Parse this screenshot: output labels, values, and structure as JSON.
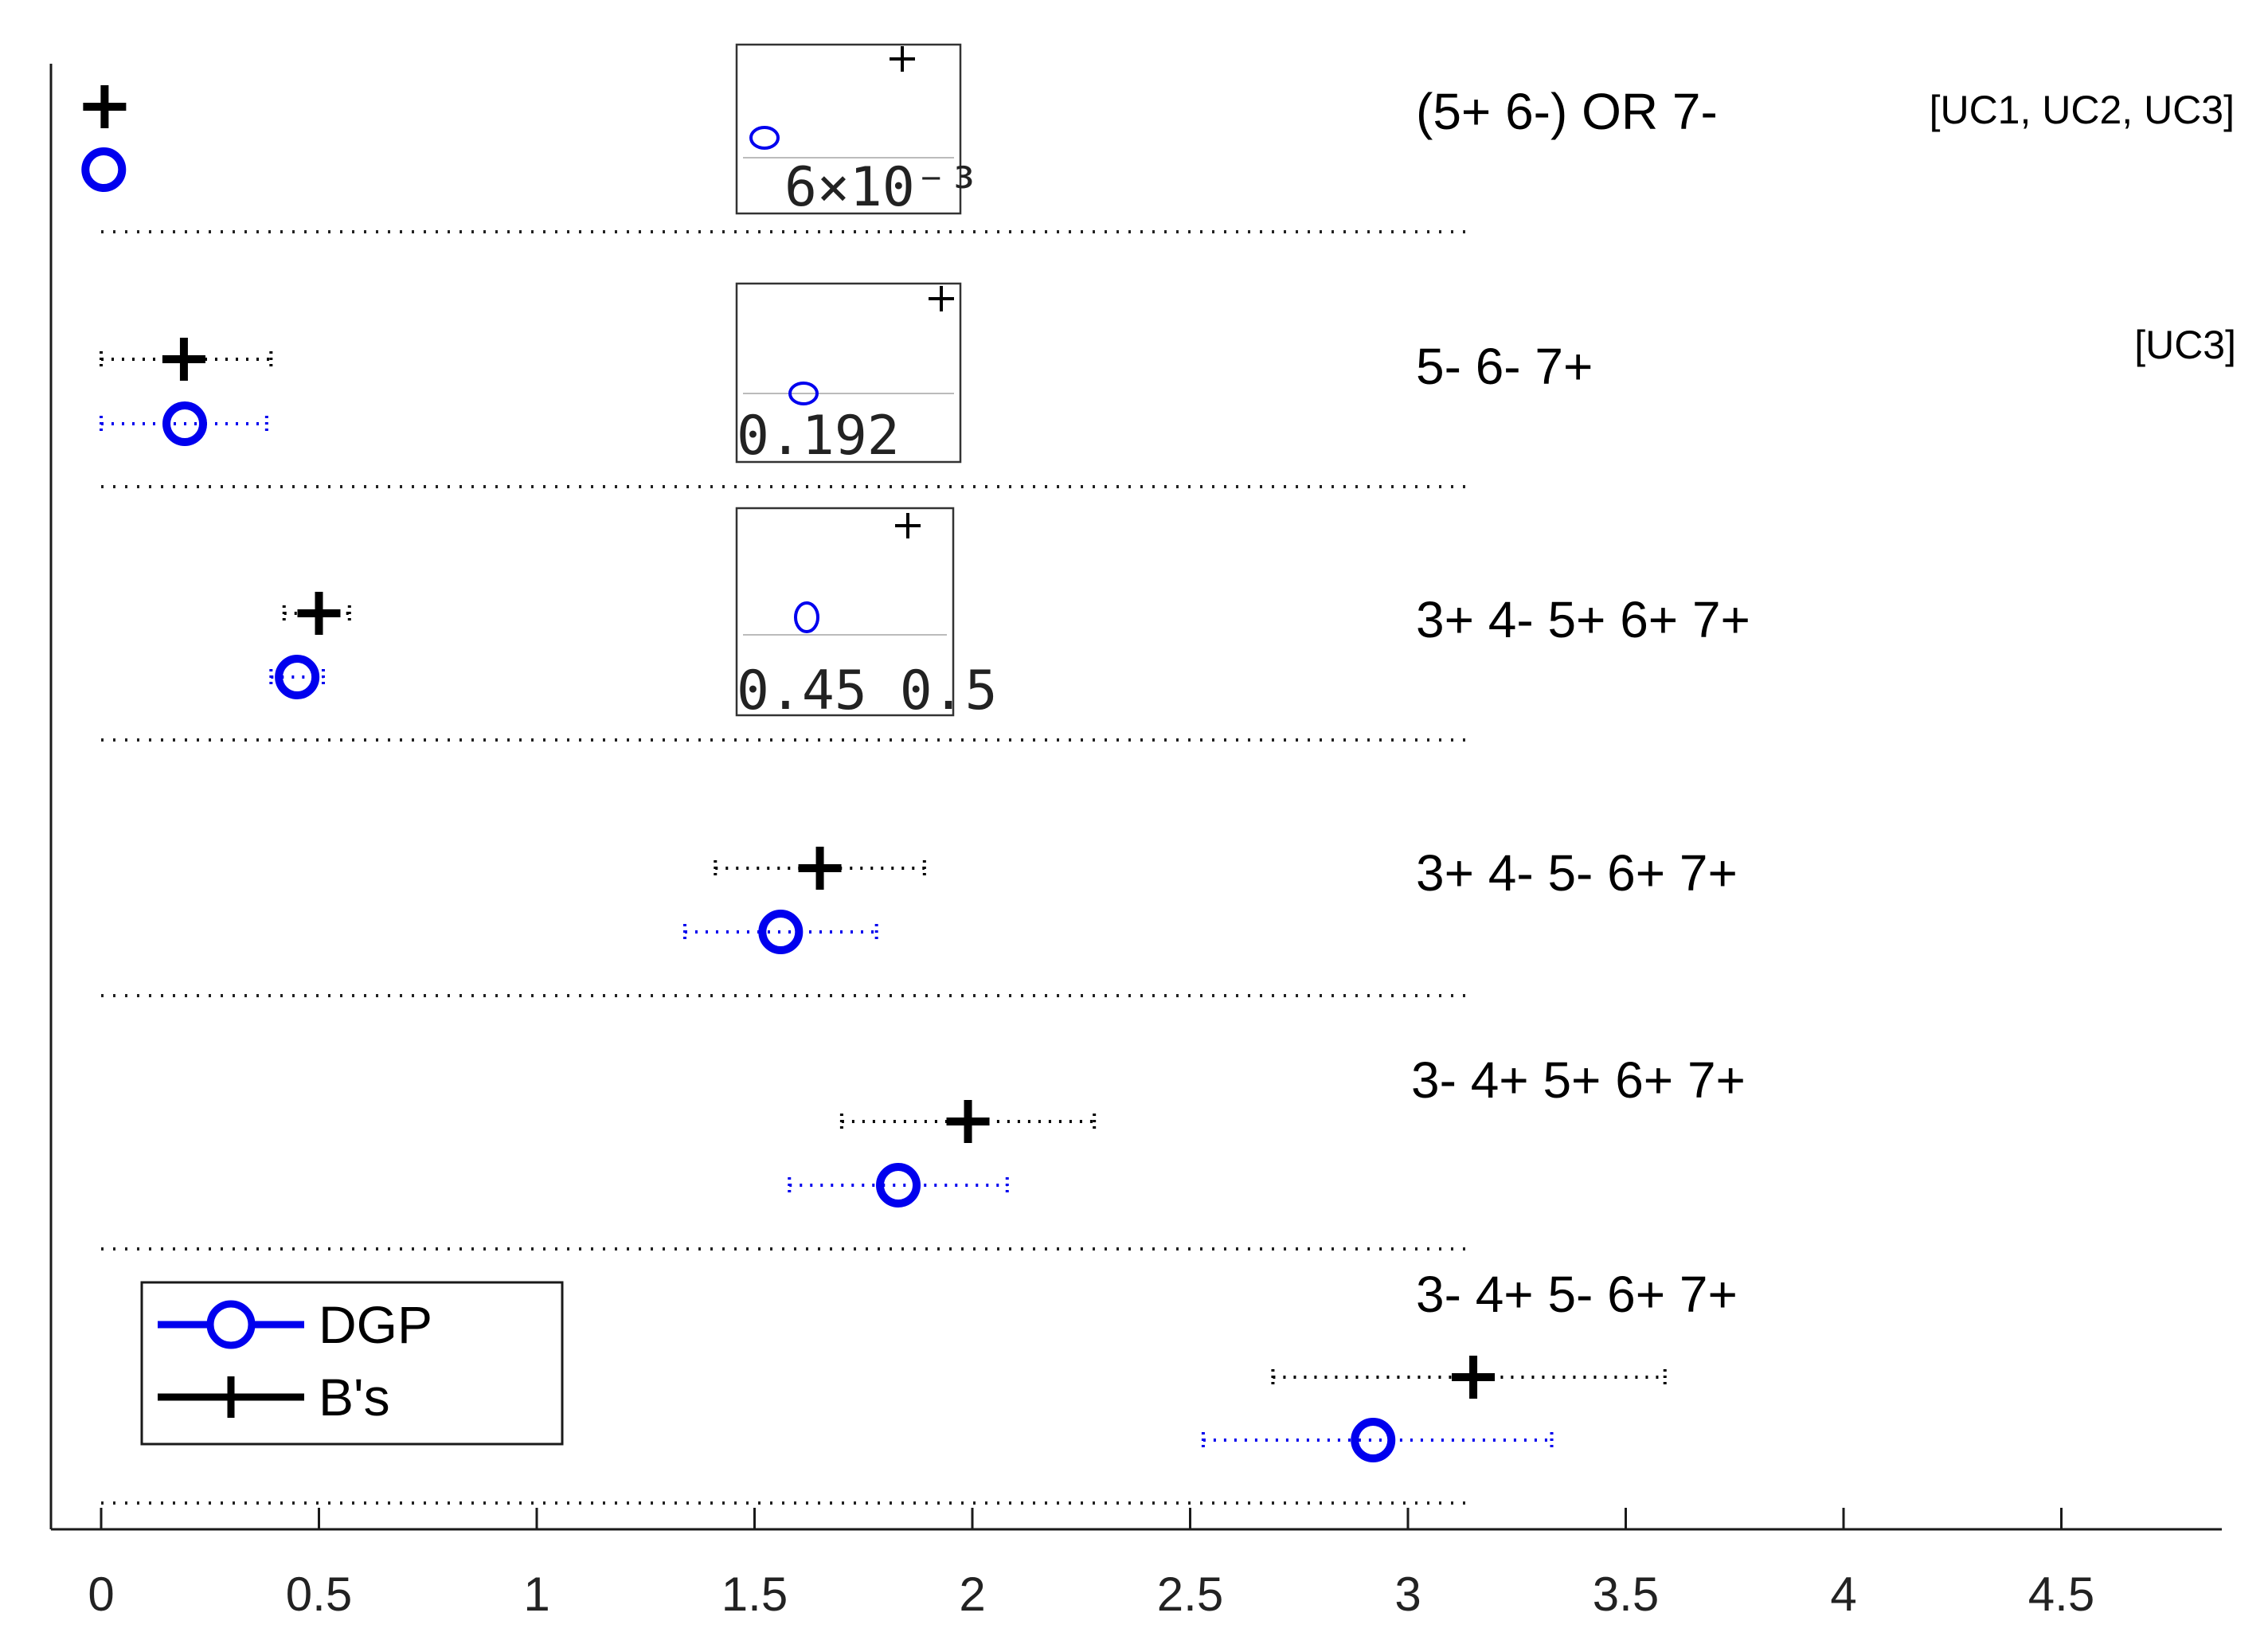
{
  "chart_data": {
    "type": "scatter",
    "title": "",
    "xlabel": "",
    "ylabel": "",
    "xlim": [
      -0.1,
      4.87
    ],
    "xticks": [
      0,
      0.5,
      1,
      1.5,
      2,
      2.5,
      3,
      3.5,
      4,
      4.5
    ],
    "xtick_labels": [
      "0",
      "0.5",
      "1",
      "1.5",
      "2",
      "2.5",
      "3",
      "3.5",
      "4",
      "4.5"
    ],
    "grid": false,
    "legend": {
      "placement": "bottom-left",
      "entries": [
        {
          "name": "DGP",
          "color": "#0000ee",
          "marker": "circle"
        },
        {
          "name": "B's",
          "color": "#000000",
          "marker": "plus"
        }
      ]
    },
    "rows": [
      {
        "label": "(5+ 6-) OR 7-",
        "annotation": "[UC1, UC2, UC3]",
        "dgp": {
          "value": 0.006,
          "lo": 0.006,
          "hi": 0.006
        },
        "bs": {
          "value": 0.008,
          "lo": 0.008,
          "hi": 0.008
        },
        "inset": {
          "label": "6×10⁻³"
        }
      },
      {
        "label": "5- 6- 7+",
        "annotation": "[UC3]",
        "dgp": {
          "value": 0.192,
          "lo": 0.0,
          "hi": 0.38
        },
        "bs": {
          "value": 0.19,
          "lo": 0.0,
          "hi": 0.39
        },
        "inset": {
          "label": "0.192"
        }
      },
      {
        "label": "3+ 4- 5+ 6+ 7+",
        "annotation": "",
        "dgp": {
          "value": 0.45,
          "lo": 0.39,
          "hi": 0.51
        },
        "bs": {
          "value": 0.5,
          "lo": 0.42,
          "hi": 0.57
        },
        "inset": {
          "label": "0.45  0.5"
        }
      },
      {
        "label": "3+ 4- 5- 6+ 7+",
        "annotation": "",
        "dgp": {
          "value": 1.56,
          "lo": 1.34,
          "hi": 1.78
        },
        "bs": {
          "value": 1.65,
          "lo": 1.41,
          "hi": 1.89
        },
        "inset": null
      },
      {
        "label": "3- 4+ 5+ 6+ 7+",
        "annotation": "",
        "dgp": {
          "value": 1.83,
          "lo": 1.58,
          "hi": 2.08
        },
        "bs": {
          "value": 1.99,
          "lo": 1.7,
          "hi": 2.28
        },
        "inset": null
      },
      {
        "label": "3- 4+ 5- 6+ 7+",
        "annotation": "",
        "dgp": {
          "value": 2.92,
          "lo": 2.53,
          "hi": 3.33
        },
        "bs": {
          "value": 3.15,
          "lo": 2.69,
          "hi": 3.59
        },
        "inset": null
      }
    ]
  }
}
